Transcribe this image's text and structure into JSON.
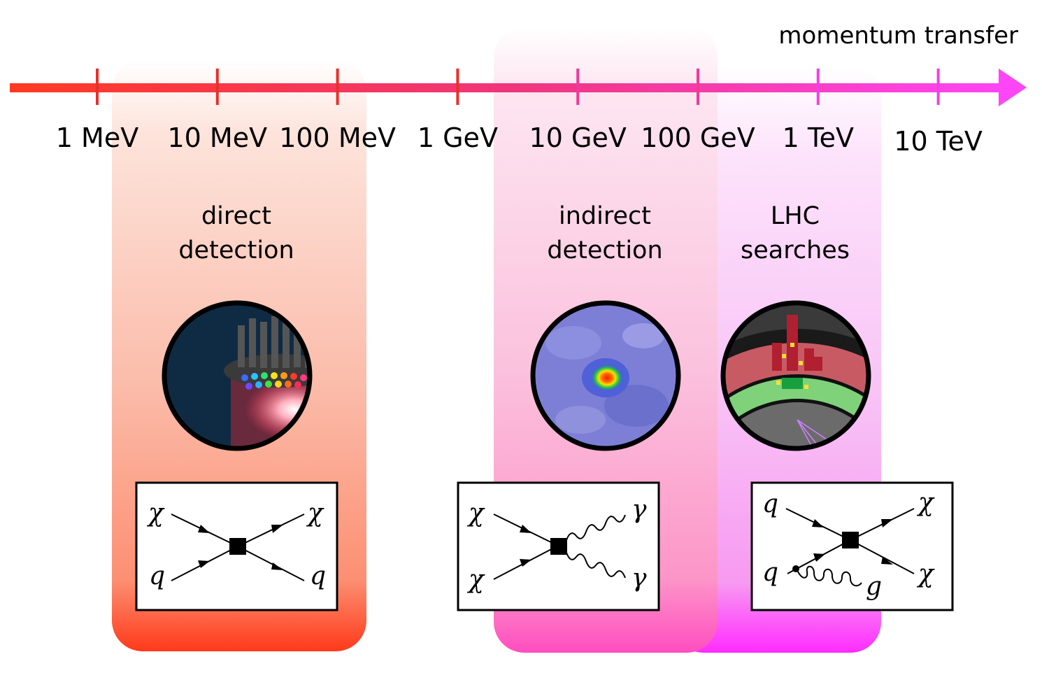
{
  "axis": {
    "title": "momentum transfer",
    "ticks": [
      "1 MeV",
      "10 MeV",
      "100 MeV",
      "1 GeV",
      "10 GeV",
      "100 GeV",
      "1 TeV",
      "10 TeV"
    ]
  },
  "colors": {
    "axis_start": "#ff3a22",
    "axis_mid": "#f0357a",
    "axis_end": "#ff45f5",
    "direct_band": "#ff3a1a",
    "indirect_band": "#ff4ec0",
    "lhc_band": "#ff2cff"
  },
  "bands": [
    {
      "id": "direct",
      "label_lines": [
        "direct",
        "detection"
      ],
      "image_icon": "xenon-detector-icon",
      "diagram": {
        "labels": [
          "χ",
          "χ",
          "q",
          "q"
        ]
      }
    },
    {
      "id": "indirect",
      "label_lines": [
        "indirect",
        "detection"
      ],
      "image_icon": "gamma-ray-sky-map-icon",
      "diagram": {
        "labels": [
          "χ",
          "χ",
          "γ",
          "γ"
        ]
      }
    },
    {
      "id": "lhc",
      "label_lines": [
        "LHC",
        "searches"
      ],
      "image_icon": "collider-event-display-icon",
      "diagram": {
        "labels": [
          "q",
          "q",
          "χ",
          "χ",
          "g"
        ]
      }
    }
  ]
}
